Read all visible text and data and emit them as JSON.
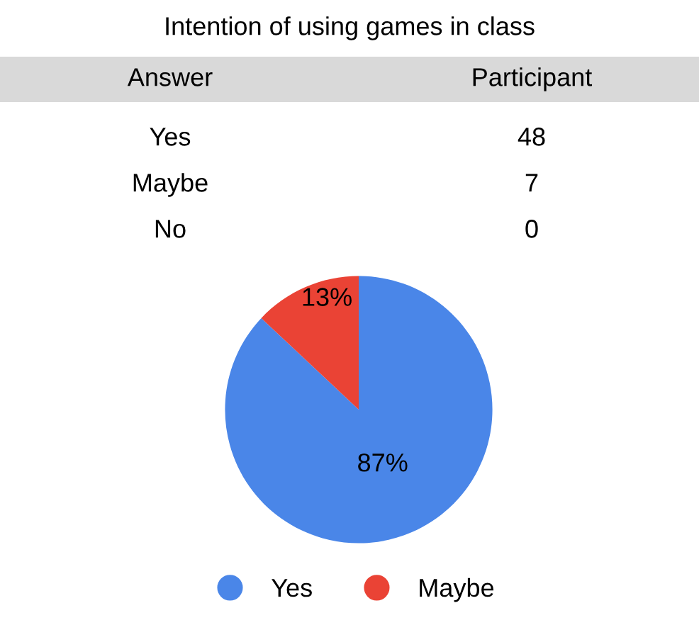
{
  "chart_data": [
    {
      "type": "other",
      "title": "Intention of using games in class",
      "annotations": [
        "Answer",
        "Participant"
      ],
      "categories": [
        "Yes",
        "Maybe",
        "No"
      ],
      "values": [
        48,
        7,
        0
      ],
      "value_labels": [
        "48",
        "7",
        "0"
      ]
    },
    {
      "type": "pie",
      "categories": [
        "Yes",
        "Maybe"
      ],
      "values": [
        87,
        13
      ],
      "value_labels": [
        "87%",
        "13%"
      ],
      "colors": [
        "#4a86e8",
        "#ea4335"
      ],
      "legend": "bottom"
    }
  ]
}
